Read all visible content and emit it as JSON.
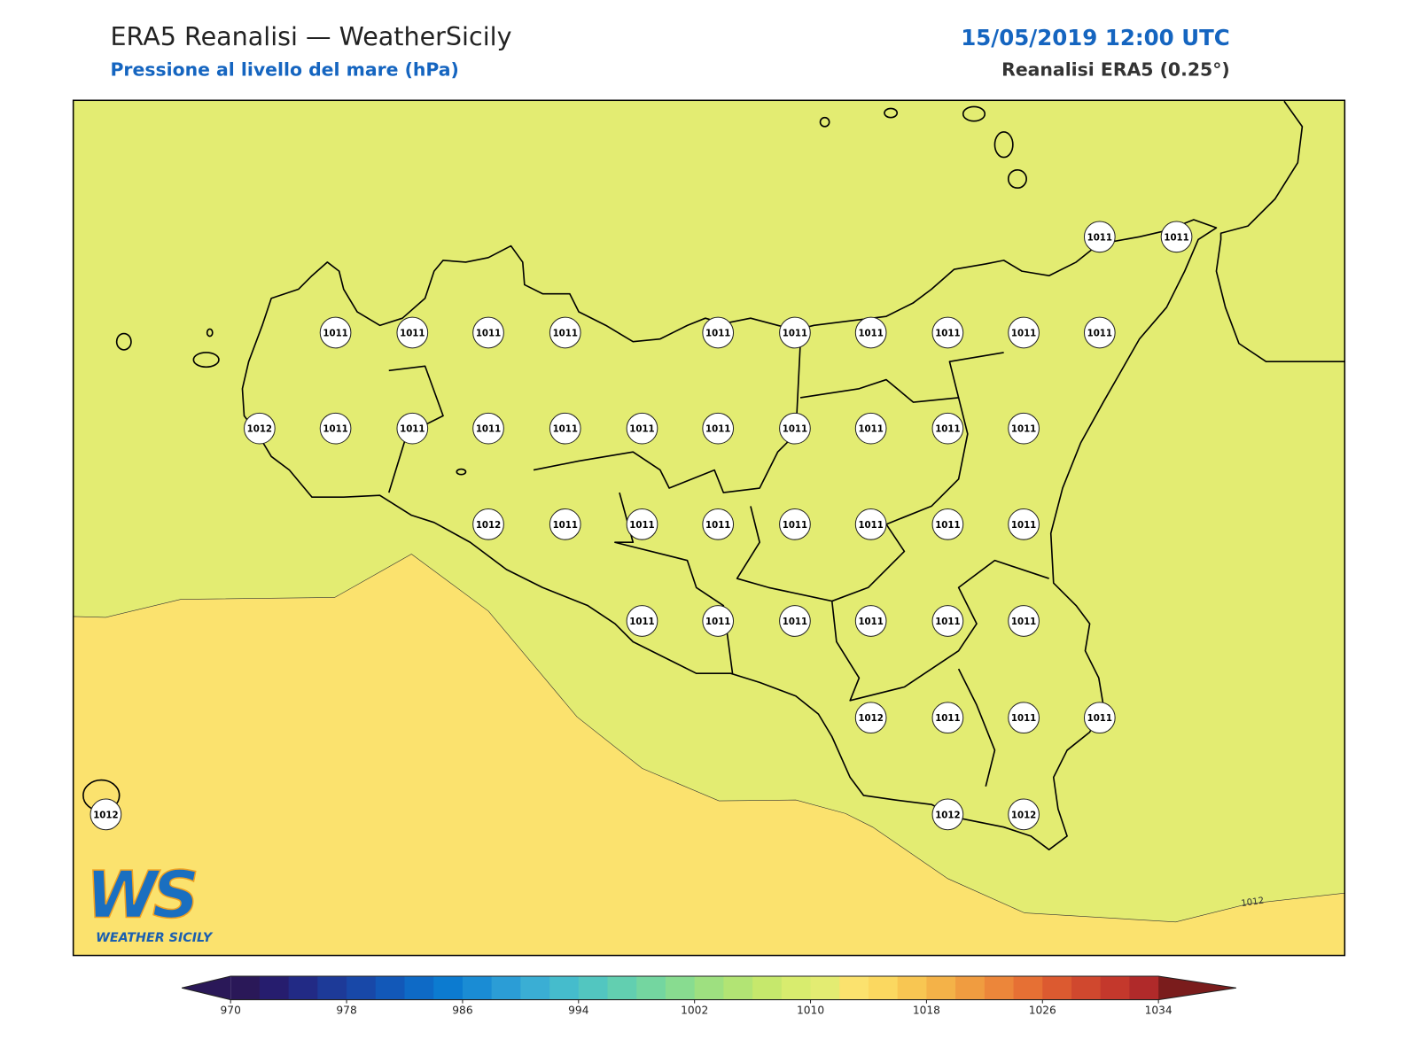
{
  "header": {
    "title": "ERA5 Reanalisi — WeatherSicily",
    "subtitle": "Pressione al livello del mare (hPa)",
    "datetime": "15/05/2019 12:00 UTC",
    "source": "Reanalisi ERA5 (0.25°)"
  },
  "map": {
    "stations": [
      1011,
      1011,
      1011,
      1011,
      1011,
      1011,
      1011,
      1011,
      1011,
      1011,
      1011,
      1011,
      1012,
      1011,
      1011,
      1011,
      1011,
      1011,
      1011,
      1011,
      1011,
      1011,
      1011,
      1012,
      1011,
      1011,
      1011,
      1011,
      1011,
      1011,
      1011,
      1011,
      1011,
      1011,
      1011,
      1011,
      1011,
      1012,
      1011,
      1011,
      1011,
      1012,
      1012,
      1012
    ],
    "contour_label": "1012"
  },
  "colorbar": {
    "ticks": [
      970,
      978,
      986,
      994,
      1002,
      1010,
      1018,
      1026,
      1034
    ],
    "colors": [
      "#2a1858",
      "#261d6e",
      "#222a85",
      "#1d3a98",
      "#1848a8",
      "#1258b8",
      "#0e6ac6",
      "#0c7bd0",
      "#1a8cd4",
      "#2b9dd6",
      "#3aaed4",
      "#45bccc",
      "#52c6c0",
      "#62cfb0",
      "#74d6a0",
      "#88dc90",
      "#9ee080",
      "#b2e474",
      "#c6e86c",
      "#d8ec6e",
      "#e3ec72",
      "#fbe26e",
      "#fbd860",
      "#f8c652",
      "#f4b248",
      "#f09c40",
      "#ec863a",
      "#e67034",
      "#dc5a30",
      "#d0482e",
      "#c4382c",
      "#b02a2a"
    ]
  },
  "logo": {
    "mark": "WS",
    "text": "WEATHER SICILY"
  }
}
